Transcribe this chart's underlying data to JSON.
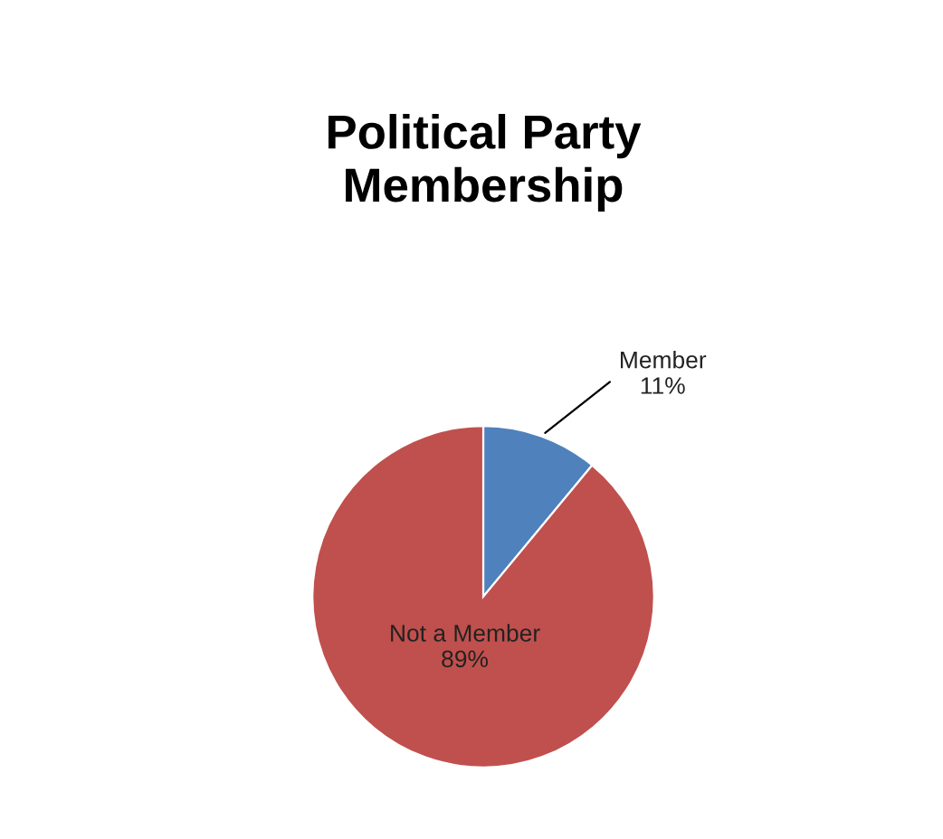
{
  "chart_data": {
    "type": "pie",
    "title": "Political Party Membership",
    "categories": [
      "Member",
      "Not a Member"
    ],
    "values": [
      11,
      89
    ],
    "value_labels": [
      "11%",
      "89%"
    ],
    "colors": [
      "#4f81bd",
      "#c0504d"
    ],
    "data_labels": true,
    "legend": false
  }
}
